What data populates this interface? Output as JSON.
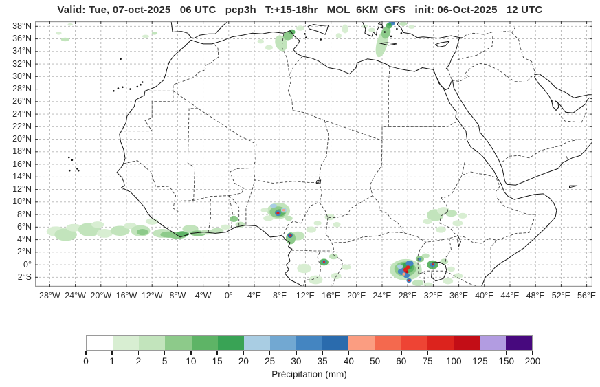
{
  "title": "Valid: Tue, 07-oct-2025   06 UTC   pcp3h   T:+15-18hr   MOL_6KM_GFS   init: 06-Oct-2025   12 UTC",
  "chart_data": {
    "type": "map",
    "subtype": "precipitation-forecast",
    "extent": {
      "lon_min": -30.3,
      "lon_max": 56.9,
      "lat_min": -3.5,
      "lat_max": 38.8
    },
    "x_axis": {
      "tick_values": [
        -28,
        -24,
        -20,
        -16,
        -12,
        -8,
        -4,
        0,
        4,
        8,
        12,
        16,
        20,
        24,
        28,
        32,
        36,
        40,
        44,
        48,
        52,
        56
      ],
      "tick_labels": [
        "28°W",
        "24°W",
        "20°W",
        "16°W",
        "12°W",
        "8°W",
        "4°W",
        "0°",
        "4°E",
        "8°E",
        "12°E",
        "16°E",
        "20°E",
        "24°E",
        "28°E",
        "32°E",
        "36°E",
        "40°E",
        "44°E",
        "48°E",
        "52°E",
        "56°E"
      ]
    },
    "y_axis": {
      "tick_values": [
        38,
        36,
        34,
        32,
        30,
        28,
        26,
        24,
        22,
        20,
        18,
        16,
        14,
        12,
        10,
        8,
        6,
        4,
        2,
        0,
        -2
      ],
      "tick_labels": [
        "38°N",
        "36°N",
        "34°N",
        "32°N",
        "30°N",
        "28°N",
        "26°N",
        "24°N",
        "22°N",
        "20°N",
        "18°N",
        "16°N",
        "14°N",
        "12°N",
        "10°N",
        "8°N",
        "6°N",
        "4°N",
        "2°N",
        "0°",
        "2°S"
      ]
    },
    "grid": {
      "on": true,
      "lon_step_deg": 4,
      "lat_step_deg": 2
    },
    "colorbar": {
      "title": "Précipitation (mm)",
      "tick_labels": [
        "0",
        "1",
        "2",
        "5",
        "10",
        "15",
        "20",
        "25",
        "30",
        "35",
        "40",
        "50",
        "60",
        "75",
        "100",
        "125",
        "150",
        "200"
      ],
      "colors": [
        "#ffffff",
        "#d8eed2",
        "#c2e4bc",
        "#8dca8a",
        "#5eb466",
        "#39a355",
        "#a9cde3",
        "#72a8d2",
        "#4485c1",
        "#2a6bad",
        "#fb9d81",
        "#f4694e",
        "#ee4434",
        "#dc231d",
        "#c30d16",
        "#b29ce1",
        "#47097e"
      ]
    },
    "palette": {
      "l1": "#d8eed2",
      "l2": "#c2e4bc",
      "m1": "#8dca8a",
      "m2": "#5eb466",
      "d": "#39a355",
      "lb": "#a9cde3",
      "mb": "#4485c1",
      "db": "#2a6bad",
      "sa": "#fb9d81",
      "or": "#f4694e",
      "re": "#dc231d",
      "dr": "#c30d16"
    },
    "level_mm": {
      "l1": "1-2",
      "l2": "2-5",
      "m1": "5-10",
      "m2": "10-15",
      "d": "15-20",
      "lb": "20-25",
      "mb": "30-35",
      "db": "35-40",
      "sa": "40-50",
      "or": "50-60",
      "re": "75-100",
      "dr": "100-125"
    },
    "precip_cells": [
      [
        "l1",
        -27,
        5.3,
        3,
        1.6
      ],
      [
        "l2",
        -25.5,
        4.8,
        3.5,
        2
      ],
      [
        "l1",
        -24.2,
        5.9,
        2.5,
        1.2
      ],
      [
        "l2",
        -21.8,
        5.6,
        3.5,
        2.2
      ],
      [
        "l1",
        -20.5,
        6.4,
        2,
        1
      ],
      [
        "l1",
        -19.4,
        5,
        2.5,
        1.4
      ],
      [
        "l2",
        -17,
        5.4,
        3,
        1.6
      ],
      [
        "l1",
        -15.4,
        6.2,
        2,
        1
      ],
      [
        "l2",
        -13.8,
        5.4,
        3,
        1.8
      ],
      [
        "m1",
        -13.5,
        5.2,
        1.8,
        1
      ],
      [
        "l1",
        -12,
        6.9,
        2,
        1
      ],
      [
        "l2",
        -10.4,
        5,
        3,
        1.4
      ],
      [
        "m1",
        -9.4,
        4.8,
        2.6,
        1
      ],
      [
        "m1",
        -8,
        4.7,
        3,
        1.1
      ],
      [
        "m2",
        -7.2,
        4.9,
        2,
        0.9
      ],
      [
        "l2",
        -6,
        5.7,
        2.5,
        1.3
      ],
      [
        "m1",
        -4.8,
        5,
        2.6,
        0.9
      ],
      [
        "l2",
        -3.4,
        5.2,
        2,
        0.8
      ],
      [
        "l2",
        -1.8,
        5.4,
        2,
        0.9
      ],
      [
        "l1",
        -0.5,
        6,
        1.5,
        0.8
      ],
      [
        "m1",
        0.8,
        7.3,
        1.3,
        1
      ],
      [
        "l2",
        1.8,
        6.4,
        1.5,
        0.9
      ],
      [
        "l2",
        7.8,
        8.6,
        3.6,
        2.6
      ],
      [
        "m1",
        7.7,
        8.4,
        2.6,
        1.8
      ],
      [
        "m2",
        8,
        8.3,
        1.6,
        1.1
      ],
      [
        "l1",
        6.2,
        7.4,
        1.6,
        0.9
      ],
      [
        "l1",
        5.6,
        8.7,
        1.2,
        0.7
      ],
      [
        "lb",
        7,
        9.4,
        1.1,
        0.6
      ],
      [
        "mb",
        7.7,
        8.2,
        0.95,
        0.85
      ],
      [
        "re",
        7.7,
        8.2,
        0.45,
        0.42
      ],
      [
        "lb",
        8.6,
        8.7,
        0.85,
        0.8
      ],
      [
        "sa",
        8.6,
        8.7,
        0.4,
        0.38
      ],
      [
        "l2",
        9.4,
        7.4,
        1.2,
        0.8
      ],
      [
        "l2",
        10.8,
        4.6,
        2.2,
        1.4
      ],
      [
        "m1",
        9.7,
        4.2,
        1.5,
        1.9
      ],
      [
        "db",
        9.6,
        4.65,
        0.8,
        0.75
      ],
      [
        "re",
        9.65,
        4.62,
        0.4,
        0.36
      ],
      [
        "l1",
        12.9,
        5.6,
        1.6,
        1
      ],
      [
        "l1",
        13.9,
        6.6,
        1.2,
        0.8
      ],
      [
        "l1",
        15.8,
        7.6,
        1.6,
        1
      ],
      [
        "l1",
        16.9,
        6.4,
        1.2,
        0.8
      ],
      [
        "l1",
        11.8,
        -0.6,
        2.2,
        1.5
      ],
      [
        "l1",
        13.6,
        -2.4,
        2.2,
        1.4
      ],
      [
        "l1",
        16.8,
        -1.8,
        1.6,
        1
      ],
      [
        "m2",
        14.9,
        0.4,
        1.4,
        1.1
      ],
      [
        "mb",
        14.9,
        0.45,
        0.7,
        0.6
      ],
      [
        "re",
        14.9,
        0.45,
        0.32,
        0.3
      ],
      [
        "l2",
        16.4,
        1.3,
        1.4,
        0.9
      ],
      [
        "l1",
        18.4,
        -0.4,
        1.4,
        0.9
      ],
      [
        "l2",
        27.7,
        -0.8,
        5,
        3.4
      ],
      [
        "m1",
        27.6,
        -0.7,
        3.4,
        2.4
      ],
      [
        "m2",
        27.8,
        -0.5,
        2.4,
        1.7
      ],
      [
        "d",
        28,
        -0.2,
        1.6,
        1.2
      ],
      [
        "mb",
        27.2,
        -1.1,
        1.5,
        1.1
      ],
      [
        "mb",
        28.3,
        0.2,
        1.2,
        0.9
      ],
      [
        "mb",
        27.8,
        -1.7,
        1,
        0.8
      ],
      [
        "lb",
        26.8,
        -0.3,
        0.9,
        0.7
      ],
      [
        "re",
        27.7,
        -0.8,
        0.75,
        0.68
      ],
      [
        "re",
        28.05,
        -0.4,
        0.6,
        0.55
      ],
      [
        "sa",
        27.4,
        -1.5,
        0.5,
        0.48
      ],
      [
        "dr",
        27.9,
        -1.15,
        0.45,
        0.4
      ],
      [
        "mb",
        28.2,
        -2.5,
        0.8,
        0.7
      ],
      [
        "re",
        28.2,
        -2.5,
        0.35,
        0.3
      ],
      [
        "m1",
        29.9,
        0.9,
        1.3,
        1
      ],
      [
        "mb",
        29.9,
        0.9,
        0.5,
        0.45
      ],
      [
        "m2",
        31.9,
        0,
        1.8,
        1.4
      ],
      [
        "mb",
        31.9,
        0,
        0.8,
        0.7
      ],
      [
        "re",
        31.95,
        0.05,
        0.35,
        0.3
      ],
      [
        "l2",
        30.8,
        1.4,
        1.2,
        0.8
      ],
      [
        "l2",
        33.7,
        0.5,
        1.3,
        0.9
      ],
      [
        "l1",
        34.8,
        -0.7,
        1.2,
        0.8
      ],
      [
        "l1",
        35.9,
        -1.8,
        1.4,
        0.9
      ],
      [
        "l1",
        34.3,
        -2.6,
        1.6,
        1
      ],
      [
        "l2",
        29.6,
        -2.9,
        1.8,
        1
      ],
      [
        "l1",
        31.2,
        -3.2,
        1.4,
        0.8
      ],
      [
        "l2",
        32.3,
        7.9,
        2.6,
        1.9
      ],
      [
        "l1",
        33.6,
        8.6,
        2,
        1.2
      ],
      [
        "l2",
        34.8,
        8.2,
        1.8,
        1.1
      ],
      [
        "l1",
        35.8,
        6.6,
        1.6,
        1
      ],
      [
        "l1",
        33.2,
        5.6,
        1.6,
        1
      ],
      [
        "l1",
        36.6,
        7.8,
        1.4,
        0.9
      ],
      [
        "l1",
        31.1,
        6.9,
        1.4,
        0.9
      ],
      [
        "l2",
        8.2,
        35.3,
        1.8,
        2.6,
        -20
      ],
      [
        "m1",
        9.3,
        36.5,
        1.6,
        1.4,
        -20
      ],
      [
        "m2",
        9.9,
        37.1,
        1,
        0.8
      ],
      [
        "l1",
        6.3,
        34.6,
        1.2,
        0.8
      ],
      [
        "l1",
        11.2,
        37.7,
        1.3,
        0.8
      ],
      [
        "l1",
        5,
        35.6,
        1,
        0.7
      ],
      [
        "l2",
        24,
        35.3,
        1.7,
        4.6,
        15
      ],
      [
        "m1",
        24.6,
        37,
        1.4,
        2,
        15
      ],
      [
        "m2",
        25.1,
        38.1,
        1,
        0.9
      ],
      [
        "mb",
        25.5,
        38.5,
        1,
        0.8
      ],
      [
        "db",
        25.7,
        38.65,
        0.5,
        0.4
      ],
      [
        "d",
        25.2,
        38.3,
        0.5,
        0.45
      ],
      [
        "l1",
        22.4,
        37.4,
        1.1,
        0.7
      ],
      [
        "l1",
        21.3,
        38,
        1,
        0.6
      ],
      [
        "l2",
        27.3,
        38.4,
        1.2,
        0.7
      ],
      [
        "l1",
        28.6,
        37.9,
        1,
        0.6
      ],
      [
        "l1",
        18.2,
        37.6,
        1,
        1.4
      ],
      [
        "l1",
        17.2,
        36.5,
        0.9,
        0.8
      ],
      [
        "l2",
        -25.6,
        35.9,
        1.3,
        0.6
      ],
      [
        "l1",
        -26.6,
        36.9,
        0.9,
        0.5
      ],
      [
        "l1",
        -13,
        36.4,
        1.1,
        0.5
      ],
      [
        "l2",
        -11.6,
        36.9,
        0.9,
        0.5
      ],
      [
        "l1",
        -24.8,
        38.3,
        0.8,
        0.4
      ]
    ]
  }
}
